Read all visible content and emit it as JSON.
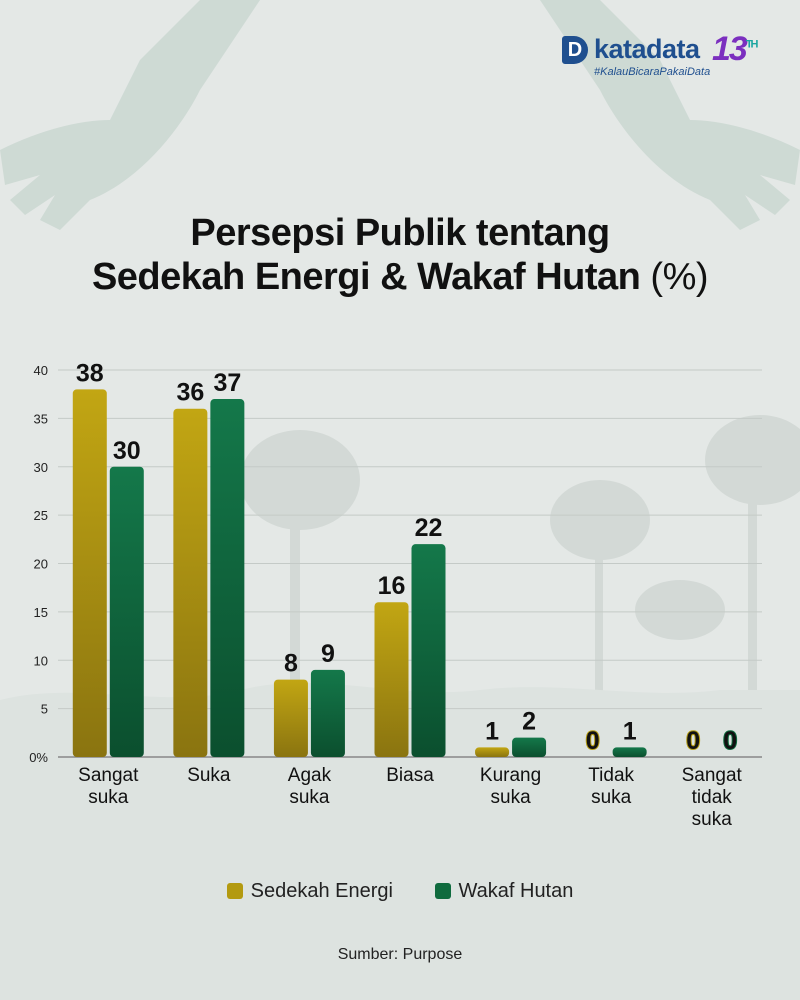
{
  "brand": {
    "logo_letter": "D",
    "name": "katadata",
    "anniversary": "13",
    "anniversary_suffix": "TH",
    "tagline": "#KalauBicaraPakaiData"
  },
  "title_line1": "Persepsi Publik tentang",
  "title_line2": "Sedekah Energi & Wakaf Hutan",
  "title_unit": "(%)",
  "source": "Sumber: Purpose",
  "colors": {
    "sedekah": "#b39a10",
    "wakaf": "#0f6b3e",
    "grid": "#c9cfcc",
    "background": "#e4e8e6"
  },
  "chart_data": {
    "type": "bar",
    "categories": [
      [
        "Sangat",
        "suka"
      ],
      [
        "Suka"
      ],
      [
        "Agak",
        "suka"
      ],
      [
        "Biasa"
      ],
      [
        "Kurang",
        "suka"
      ],
      [
        "Tidak",
        "suka"
      ],
      [
        "Sangat",
        "tidak",
        "suka"
      ]
    ],
    "series": [
      {
        "name": "Sedekah Energi",
        "color": "#b39a10",
        "values": [
          38,
          36,
          8,
          16,
          1,
          0,
          0
        ]
      },
      {
        "name": "Wakaf Hutan",
        "color": "#0f6b3e",
        "values": [
          30,
          37,
          9,
          22,
          2,
          1,
          0
        ]
      }
    ],
    "y_ticks": [
      "0%",
      "5",
      "10",
      "15",
      "20",
      "25",
      "30",
      "35",
      "40"
    ],
    "ylim": [
      0,
      40
    ],
    "grid": true,
    "legend_position": "bottom"
  }
}
